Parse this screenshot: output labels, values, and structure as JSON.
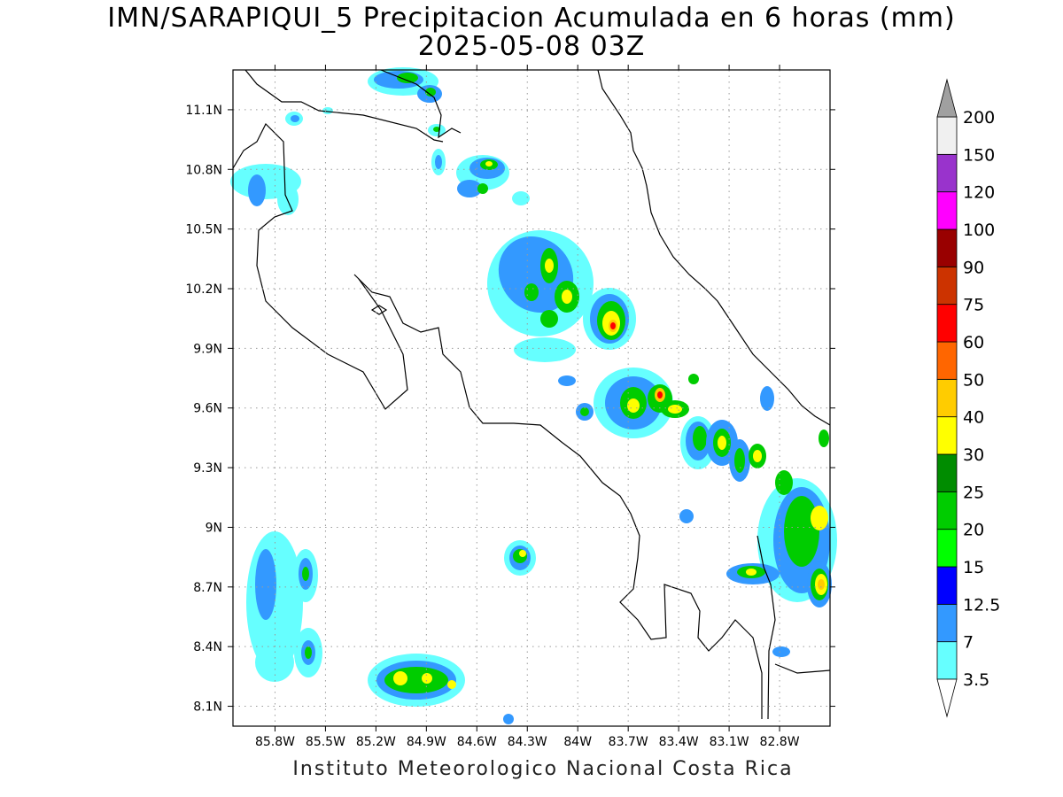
{
  "title": {
    "line1": "IMN/SARAPIQUI_5 Precipitacion Acumulada en 6 horas (mm)",
    "line2": "2025-05-08 03Z"
  },
  "credit": "Instituto Meteorologico Nacional Costa Rica",
  "map": {
    "lon_range": [
      -86.05,
      -82.5
    ],
    "lat_range": [
      8.0,
      11.3
    ],
    "lon_ticks": [
      {
        "value": -85.8,
        "label": "85.8W"
      },
      {
        "value": -85.5,
        "label": "85.5W"
      },
      {
        "value": -85.2,
        "label": "85.2W"
      },
      {
        "value": -84.9,
        "label": "84.9W"
      },
      {
        "value": -84.6,
        "label": "84.6W"
      },
      {
        "value": -84.3,
        "label": "84.3W"
      },
      {
        "value": -84.0,
        "label": "84W"
      },
      {
        "value": -83.7,
        "label": "83.7W"
      },
      {
        "value": -83.4,
        "label": "83.4W"
      },
      {
        "value": -83.1,
        "label": "83.1W"
      },
      {
        "value": -82.8,
        "label": "82.8W"
      }
    ],
    "lat_ticks": [
      {
        "value": 11.1,
        "label": "11.1N"
      },
      {
        "value": 10.8,
        "label": "10.8N"
      },
      {
        "value": 10.5,
        "label": "10.5N"
      },
      {
        "value": 10.2,
        "label": "10.2N"
      },
      {
        "value": 9.9,
        "label": "9.9N"
      },
      {
        "value": 9.6,
        "label": "9.6N"
      },
      {
        "value": 9.3,
        "label": "9.3N"
      },
      {
        "value": 9.0,
        "label": "9N"
      },
      {
        "value": 8.7,
        "label": "8.7N"
      },
      {
        "value": 8.4,
        "label": "8.4N"
      },
      {
        "value": 8.1,
        "label": "8.1N"
      }
    ],
    "grid": true
  },
  "colorbar": {
    "labels": [
      "3.5",
      "7",
      "12.5",
      "15",
      "20",
      "25",
      "30",
      "40",
      "50",
      "60",
      "75",
      "90",
      "100",
      "120",
      "150",
      "200"
    ],
    "colors": [
      "#ffffff",
      "#66ffff",
      "#3399ff",
      "#0000ff",
      "#00ff00",
      "#00cc00",
      "#008c00",
      "#ffff00",
      "#ffcc00",
      "#ff6600",
      "#ff0000",
      "#cc3300",
      "#990000",
      "#ff00ff",
      "#9933cc",
      "#f0f0f0",
      "#a0a0a0"
    ]
  }
}
